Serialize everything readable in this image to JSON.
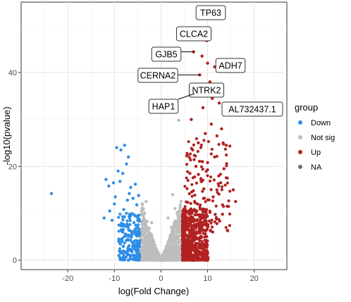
{
  "chart_data": {
    "type": "scatter",
    "xlabel": "log(Fold Change)",
    "ylabel": "-log10(pvalue)",
    "xlim": [
      -30,
      27
    ],
    "ylim": [
      -2,
      55
    ],
    "x_ticks": [
      -20,
      -10,
      0,
      10,
      20
    ],
    "y_ticks": [
      0,
      20,
      40
    ],
    "grid": true,
    "legend": {
      "title": "group",
      "placement": "right",
      "entries": [
        {
          "label": "Down",
          "color": "#2e8ee6"
        },
        {
          "label": "Not sig",
          "color": "#bdbdbd"
        },
        {
          "label": "Up",
          "color": "#b22222"
        },
        {
          "label": "NA",
          "color": "#6e6e6e"
        }
      ]
    },
    "labeled_points": [
      {
        "gene": "TP63",
        "x": 8.0,
        "y": 53.2
      },
      {
        "gene": "CLCA2",
        "x": 9.8,
        "y": 46.8
      },
      {
        "gene": "GJB5",
        "x": 7.0,
        "y": 44.4
      },
      {
        "gene": "ADH7",
        "x": 11.5,
        "y": 41.2
      },
      {
        "gene": "CERNA2",
        "x": 8.3,
        "y": 39.5
      },
      {
        "gene": "NTRK2",
        "x": 10.5,
        "y": 38.0
      },
      {
        "gene": "HAP1",
        "x": 7.2,
        "y": 35.5
      },
      {
        "gene": "AL732437.1",
        "x": 14.4,
        "y": 31.5
      }
    ],
    "series": [
      {
        "name": "Down",
        "color": "#2e8ee6",
        "points": [
          [
            -23.5,
            14.2
          ],
          [
            -11.8,
            17.2
          ],
          [
            -11.2,
            15.8
          ],
          [
            -10.2,
            16.5
          ],
          [
            -10.0,
            12.0
          ],
          [
            -9.5,
            24.0
          ],
          [
            -8.6,
            23.5
          ],
          [
            -7.8,
            24.5
          ],
          [
            -9.2,
            19.0
          ],
          [
            -9.8,
            13.5
          ],
          [
            -8.8,
            16.8
          ],
          [
            -8.2,
            18.5
          ],
          [
            -7.4,
            20.5
          ],
          [
            -7.0,
            22.0
          ],
          [
            -6.5,
            15.5
          ],
          [
            -11.0,
            10.5
          ],
          [
            -12.2,
            9.0
          ],
          [
            -10.5,
            8.5
          ],
          [
            -9.0,
            7.5
          ],
          [
            -8.0,
            10.8
          ],
          [
            -7.2,
            12.8
          ],
          [
            -6.8,
            14.2
          ],
          [
            -6.0,
            13.2
          ],
          [
            -5.5,
            16.2
          ],
          [
            -5.2,
            11.8
          ],
          [
            -4.8,
            13.8
          ],
          [
            -8.5,
            6.5
          ],
          [
            -7.5,
            5.2
          ],
          [
            -6.5,
            9.5
          ],
          [
            -5.8,
            8.0
          ]
        ]
      },
      {
        "name": "Up",
        "color": "#b22222",
        "points": [
          [
            8.0,
            53.2
          ],
          [
            9.8,
            46.8
          ],
          [
            7.0,
            44.4
          ],
          [
            11.5,
            41.2
          ],
          [
            8.3,
            39.5
          ],
          [
            10.5,
            38.0
          ],
          [
            7.2,
            35.5
          ],
          [
            14.4,
            31.5
          ],
          [
            8.8,
            43.5
          ],
          [
            10.0,
            42.0
          ],
          [
            12.5,
            33.5
          ],
          [
            6.5,
            30.0
          ],
          [
            9.0,
            32.5
          ],
          [
            11.0,
            34.5
          ],
          [
            13.0,
            28.0
          ],
          [
            12.0,
            26.5
          ],
          [
            9.5,
            27.0
          ],
          [
            10.8,
            29.0
          ],
          [
            8.0,
            25.0
          ],
          [
            6.8,
            23.5
          ],
          [
            14.0,
            24.5
          ],
          [
            11.5,
            22.0
          ],
          [
            7.5,
            20.0
          ],
          [
            13.5,
            19.5
          ],
          [
            10.0,
            20.8
          ],
          [
            6.2,
            18.5
          ],
          [
            8.6,
            17.0
          ],
          [
            12.8,
            16.5
          ],
          [
            15.5,
            15.0
          ],
          [
            9.2,
            15.2
          ],
          [
            11.2,
            13.5
          ],
          [
            7.8,
            12.0
          ],
          [
            14.2,
            11.5
          ],
          [
            10.5,
            10.2
          ],
          [
            6.5,
            9.0
          ],
          [
            8.8,
            8.0
          ],
          [
            12.0,
            7.8
          ],
          [
            16.0,
            12.5
          ],
          [
            13.2,
            9.8
          ],
          [
            9.8,
            6.5
          ]
        ]
      },
      {
        "name": "Not sig",
        "color": "#bdbdbd",
        "points": [
          [
            3.8,
            29.8
          ],
          [
            2.5,
            14.0
          ],
          [
            1.5,
            9.0
          ],
          [
            -3.2,
            12.5
          ],
          [
            -2.0,
            8.0
          ],
          [
            3.0,
            11.0
          ],
          [
            -3.8,
            11.0
          ],
          [
            2.2,
            7.0
          ]
        ]
      }
    ]
  }
}
